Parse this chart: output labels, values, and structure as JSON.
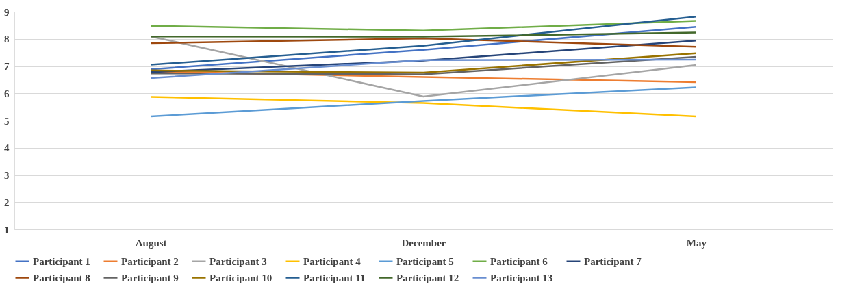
{
  "chart_data": {
    "type": "line",
    "categories": [
      "August",
      "December",
      "May"
    ],
    "series": [
      {
        "name": "Participant 1",
        "color": "#4472c4",
        "values": [
          6.88,
          7.6,
          8.44
        ]
      },
      {
        "name": "Participant 2",
        "color": "#ed7d31",
        "values": [
          6.8,
          6.6,
          6.41
        ]
      },
      {
        "name": "Participant 3",
        "color": "#a5a5a5",
        "values": [
          8.09,
          5.88,
          7.04
        ]
      },
      {
        "name": "Participant 4",
        "color": "#ffc000",
        "values": [
          5.87,
          5.64,
          5.15
        ]
      },
      {
        "name": "Participant 5",
        "color": "#5b9bd5",
        "values": [
          5.15,
          5.72,
          6.22
        ]
      },
      {
        "name": "Participant 6",
        "color": "#70ad47",
        "values": [
          8.48,
          8.3,
          8.66
        ]
      },
      {
        "name": "Participant 7",
        "color": "#264478",
        "values": [
          6.78,
          7.2,
          7.94
        ]
      },
      {
        "name": "Participant 8",
        "color": "#9e480e",
        "values": [
          7.84,
          8.02,
          7.71
        ]
      },
      {
        "name": "Participant 9",
        "color": "#636363",
        "values": [
          6.73,
          6.7,
          7.34
        ]
      },
      {
        "name": "Participant 10",
        "color": "#997300",
        "values": [
          6.84,
          6.76,
          7.47
        ]
      },
      {
        "name": "Participant 11",
        "color": "#255e91",
        "values": [
          7.05,
          7.75,
          8.82
        ]
      },
      {
        "name": "Participant 12",
        "color": "#43682b",
        "values": [
          8.09,
          8.08,
          8.23
        ]
      },
      {
        "name": "Participant 13",
        "color": "#698ed0",
        "values": [
          6.56,
          7.22,
          7.24
        ]
      }
    ],
    "ylim": [
      1,
      9
    ],
    "yticks": [
      1,
      2,
      3,
      4,
      5,
      6,
      7,
      8,
      9
    ],
    "grid": "y",
    "legend": "bottom",
    "marker": "none",
    "line_style": "solid"
  }
}
